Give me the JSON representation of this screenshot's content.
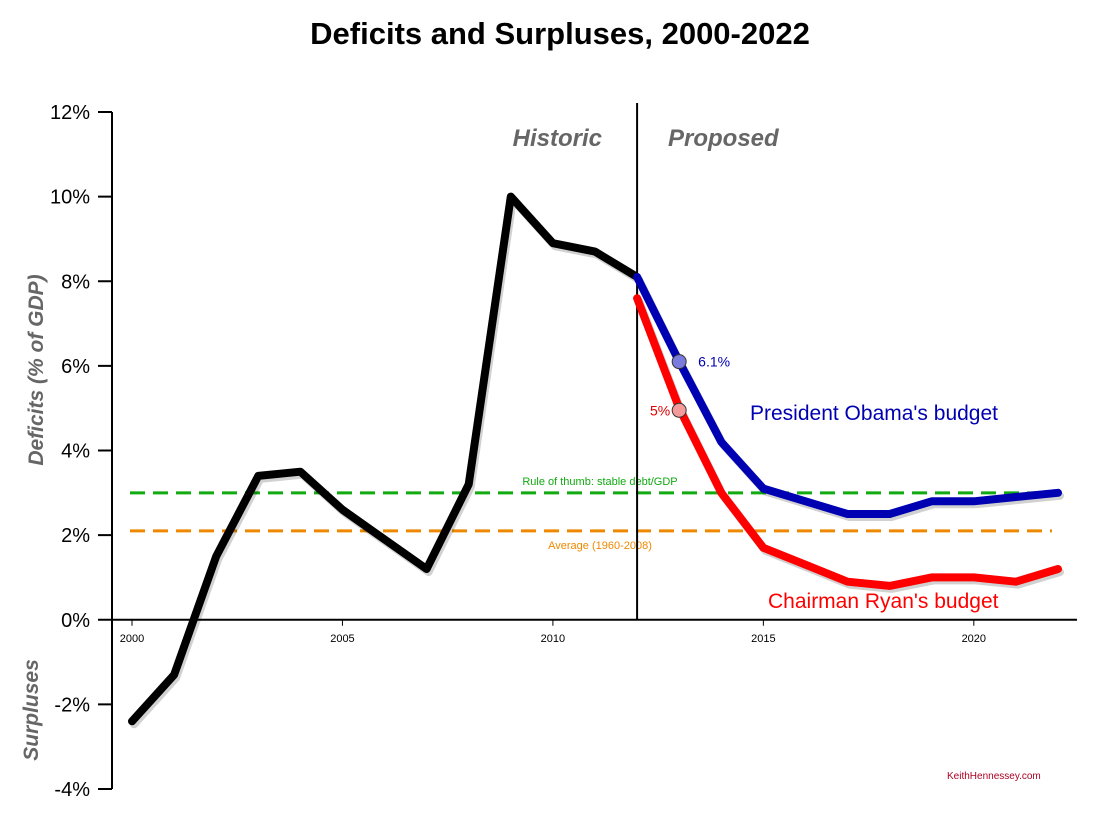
{
  "chart_data": {
    "type": "line",
    "title": "Deficits and Surpluses, 2000-2022",
    "xlim": [
      2000,
      2022
    ],
    "ylim": [
      -4,
      12
    ],
    "x_ticks": [
      {
        "value": 2000,
        "label": "2000"
      },
      {
        "value": 2005,
        "label": "2005"
      },
      {
        "value": 2010,
        "label": "2010"
      },
      {
        "value": 2015,
        "label": "2015"
      },
      {
        "value": 2020,
        "label": "2020"
      }
    ],
    "y_ticks": [
      {
        "value": 12,
        "label": "12%"
      },
      {
        "value": 10,
        "label": "10%"
      },
      {
        "value": 8,
        "label": "8%"
      },
      {
        "value": 6,
        "label": "6%"
      },
      {
        "value": 4,
        "label": "4%"
      },
      {
        "value": 2,
        "label": "2%"
      },
      {
        "value": 0,
        "label": "0%"
      },
      {
        "value": -2,
        "label": "-2%"
      },
      {
        "value": -4,
        "label": "-4%"
      }
    ],
    "y_axis_labels": {
      "upper": "Deficits (% of GDP)",
      "lower": "Surpluses"
    },
    "regions": {
      "divider_x": 2012,
      "left_label": "Historic",
      "right_label": "Proposed"
    },
    "series": [
      {
        "name": "",
        "color": "#000000",
        "x": [
          2000,
          2001,
          2002,
          2003,
          2004,
          2005,
          2006,
          2007,
          2008,
          2009,
          2010,
          2011,
          2012
        ],
        "y": [
          -2.4,
          -1.3,
          1.5,
          3.4,
          3.5,
          2.6,
          1.9,
          1.2,
          3.2,
          10.0,
          8.9,
          8.7,
          8.1
        ]
      },
      {
        "name": "President Obama's budget",
        "color": "#0000b3",
        "x": [
          2012,
          2013,
          2014,
          2015,
          2016,
          2017,
          2018,
          2019,
          2020,
          2021,
          2022
        ],
        "y": [
          8.1,
          6.1,
          4.2,
          3.1,
          2.8,
          2.5,
          2.5,
          2.8,
          2.8,
          2.9,
          3.0
        ]
      },
      {
        "name": "Chairman Ryan's budget",
        "color": "#ff0000",
        "x": [
          2012,
          2013,
          2014,
          2015,
          2016,
          2017,
          2018,
          2019,
          2020,
          2021,
          2022
        ],
        "y": [
          7.6,
          5.0,
          3.0,
          1.7,
          1.3,
          0.9,
          0.8,
          1.0,
          1.0,
          0.9,
          1.2
        ]
      }
    ],
    "highlighted_points": [
      {
        "x": 2013,
        "y": 6.1,
        "label": "6.1%",
        "color": "#0000b3",
        "fill": "#7b7bde"
      },
      {
        "x": 2013,
        "y": 4.95,
        "label": "5%",
        "color": "#e00000",
        "fill": "#f59a9a"
      }
    ],
    "reference_lines": [
      {
        "y": 3.0,
        "label": "Rule of thumb: stable debt/GDP",
        "color": "#11aa11"
      },
      {
        "y": 2.1,
        "label": "Average (1960-2008)",
        "color": "#ee8800"
      }
    ],
    "source_label": "KeithHennessey.com",
    "source_color": "#aa0022",
    "grid": false
  }
}
